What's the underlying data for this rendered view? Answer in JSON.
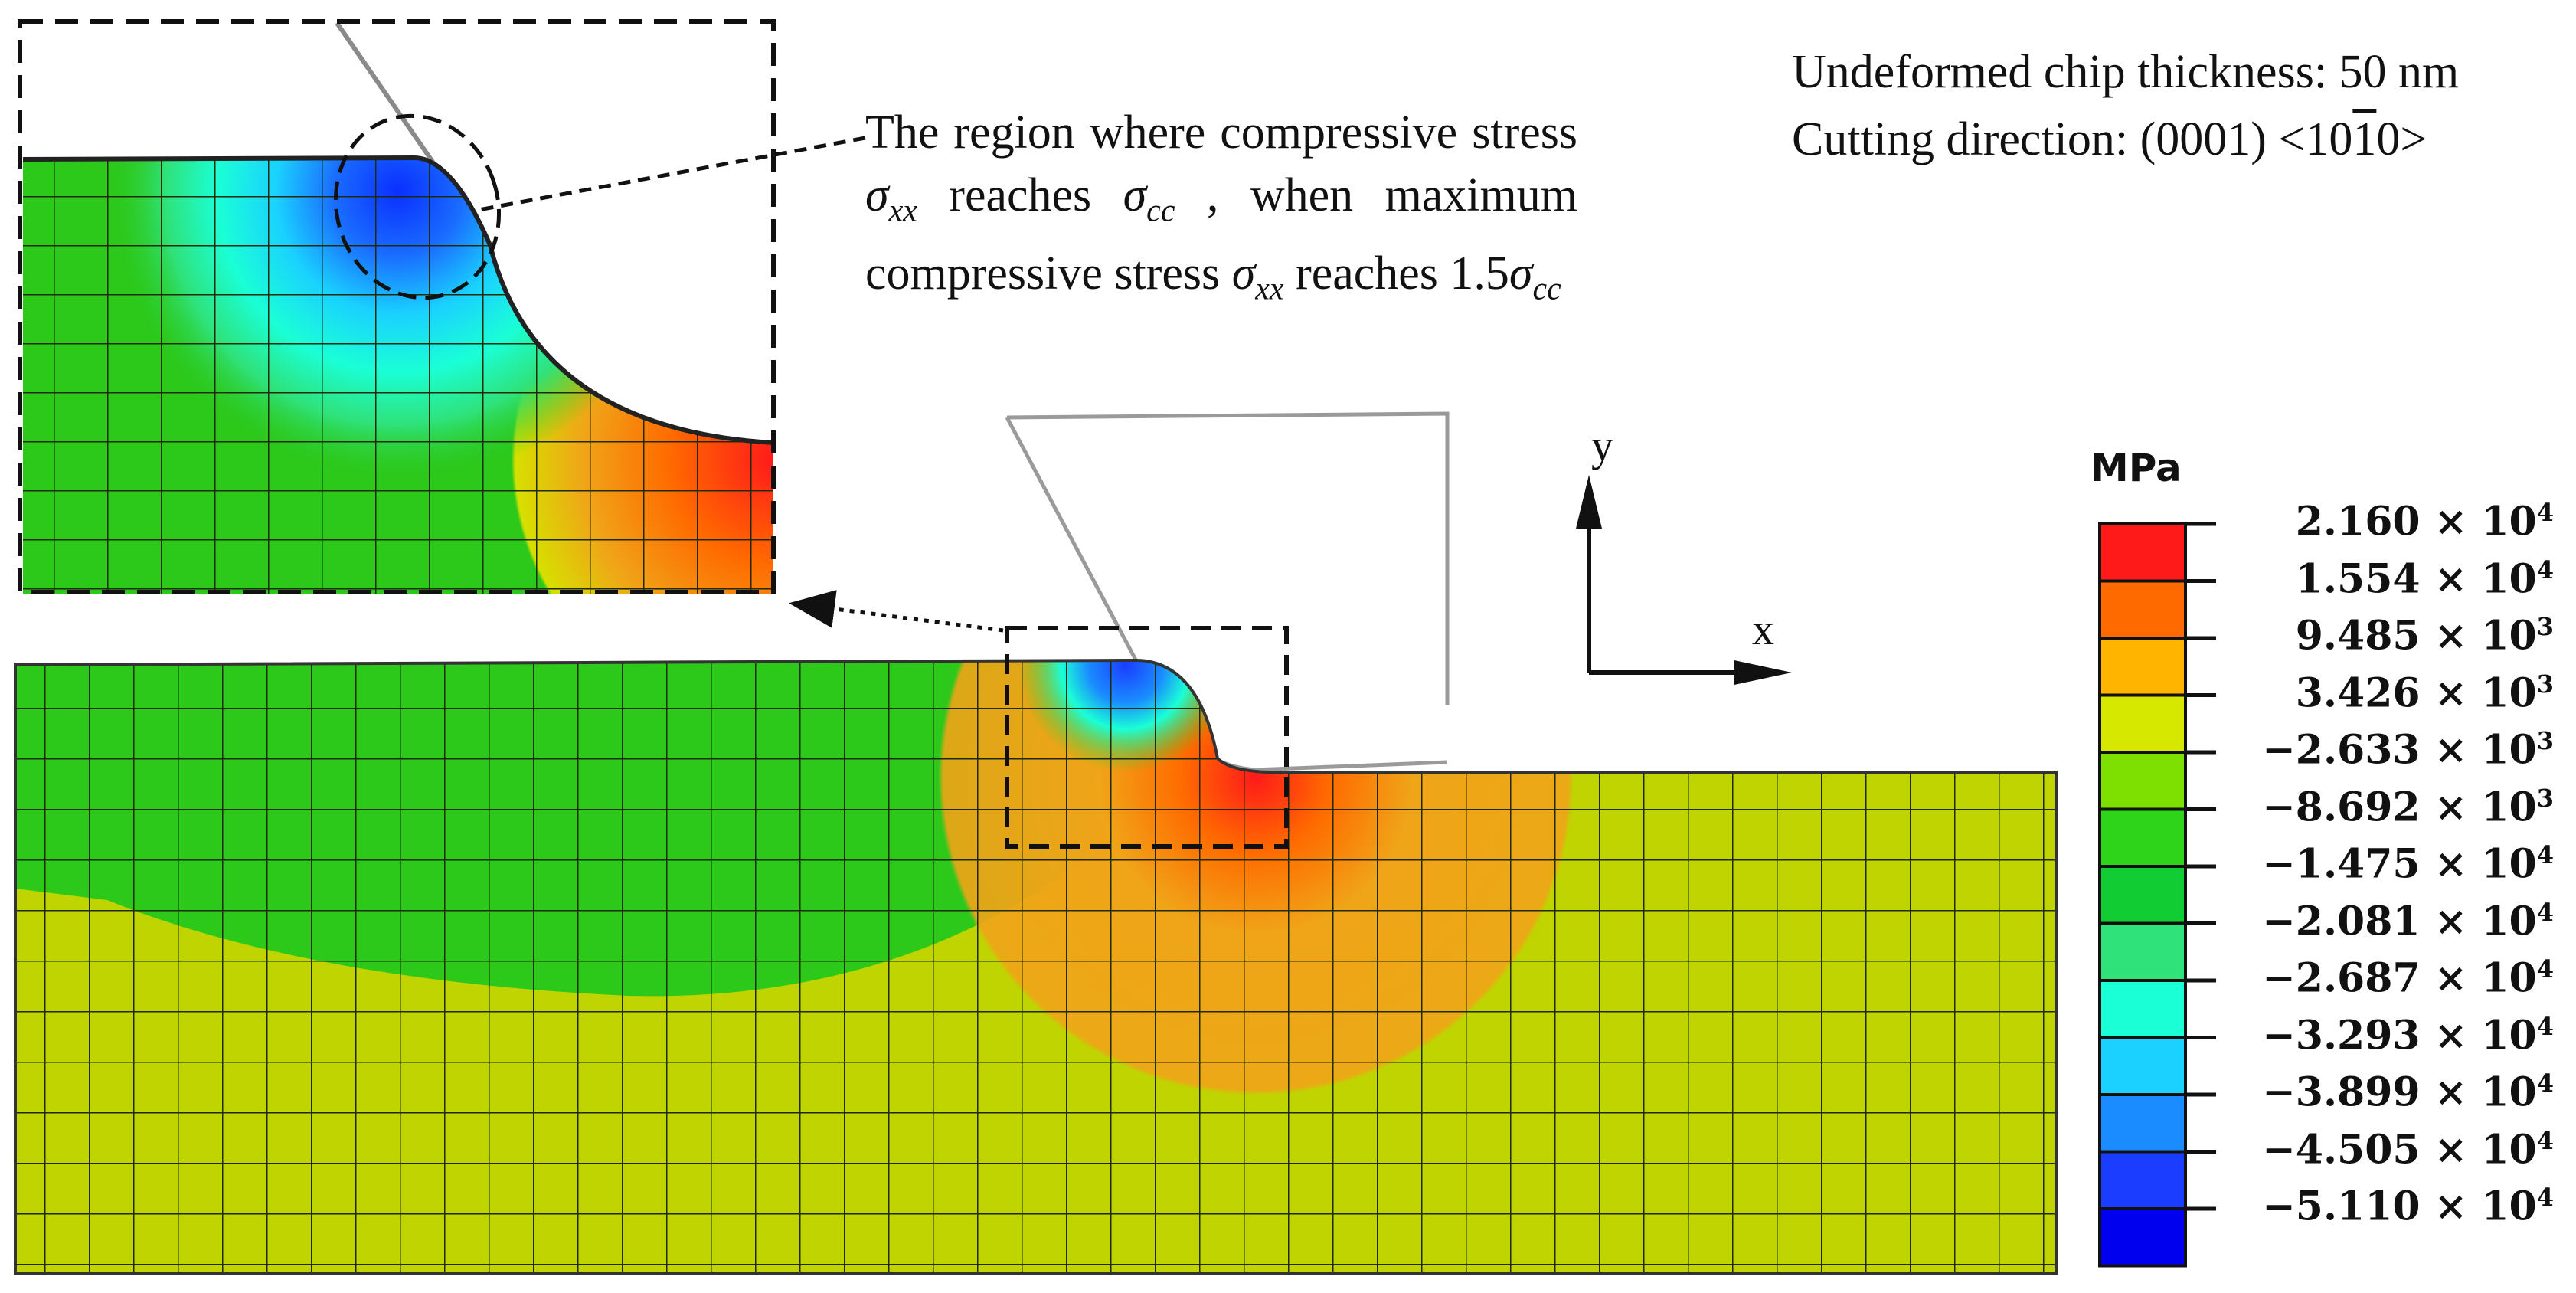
{
  "info": {
    "line1": "Undeformed chip thickness: 50 nm",
    "line2_pre": "Cutting direction: (0001) <10",
    "line2_over": "1",
    "line2_post": "0>"
  },
  "annotation": {
    "part1": "The region where compressive stress ",
    "sigma": "σ",
    "sub_xx": "xx",
    "reaches": " reaches ",
    "sub_cc": "cc",
    "part2": " , when maximum compressive stress ",
    "part3": " reaches 1.5"
  },
  "axes": {
    "x": "x",
    "y": "y"
  },
  "legend": {
    "unit": "MPa",
    "labels": [
      {
        "mant": "2.160",
        "exp": "4"
      },
      {
        "mant": "1.554",
        "exp": "4"
      },
      {
        "mant": "9.485",
        "exp": "3"
      },
      {
        "mant": "3.426",
        "exp": "3"
      },
      {
        "mant": "−2.633",
        "exp": "3"
      },
      {
        "mant": "−8.692",
        "exp": "3"
      },
      {
        "mant": "−1.475",
        "exp": "4"
      },
      {
        "mant": "−2.081",
        "exp": "4"
      },
      {
        "mant": "−2.687",
        "exp": "4"
      },
      {
        "mant": "−3.293",
        "exp": "4"
      },
      {
        "mant": "−3.899",
        "exp": "4"
      },
      {
        "mant": "−4.505",
        "exp": "4"
      },
      {
        "mant": "−5.110",
        "exp": "4"
      }
    ],
    "colors": [
      "#ff1a1a",
      "#ff6a00",
      "#ffb400",
      "#d6e800",
      "#7ee000",
      "#2ed41a",
      "#12cc33",
      "#2fe27a",
      "#1affd6",
      "#1ad1ff",
      "#1a8cff",
      "#1a3dff",
      "#0000ee"
    ]
  },
  "colors": {
    "yellow_green": "#bfd400",
    "green": "#2cc81a",
    "orange": "#f0a418",
    "red": "#ff2020",
    "mesh": "#2a3a10"
  }
}
